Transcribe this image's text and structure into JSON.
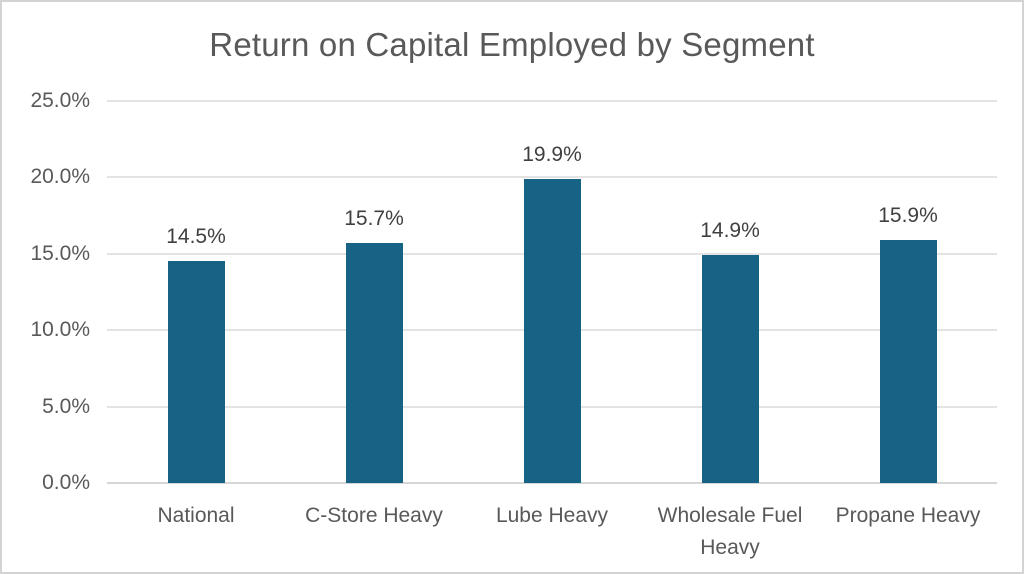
{
  "chart_data": {
    "type": "bar",
    "title": "Return on Capital Employed by Segment",
    "categories": [
      "National",
      "C-Store Heavy",
      "Lube Heavy",
      "Wholesale Fuel Heavy",
      "Propane Heavy"
    ],
    "values": [
      14.5,
      15.7,
      19.9,
      14.9,
      15.9
    ],
    "data_labels": [
      "14.5%",
      "15.7%",
      "19.9%",
      "14.9%",
      "15.9%"
    ],
    "xlabel": "",
    "ylabel": "",
    "ylim": [
      0,
      25
    ],
    "yticks": [
      0,
      5,
      10,
      15,
      20,
      25
    ],
    "ytick_labels": [
      "0.0%",
      "5.0%",
      "10.0%",
      "15.0%",
      "20.0%",
      "25.0%"
    ],
    "grid": true,
    "legend": "none",
    "colors": {
      "bar": "#166385",
      "gridline": "#e3e3e3",
      "axis_line": "#d6d6d6",
      "axis_text": "#595959",
      "data_label_text": "#404040",
      "title_text": "#595959",
      "border": "#d3d3d3",
      "background": "#ffffff"
    }
  }
}
